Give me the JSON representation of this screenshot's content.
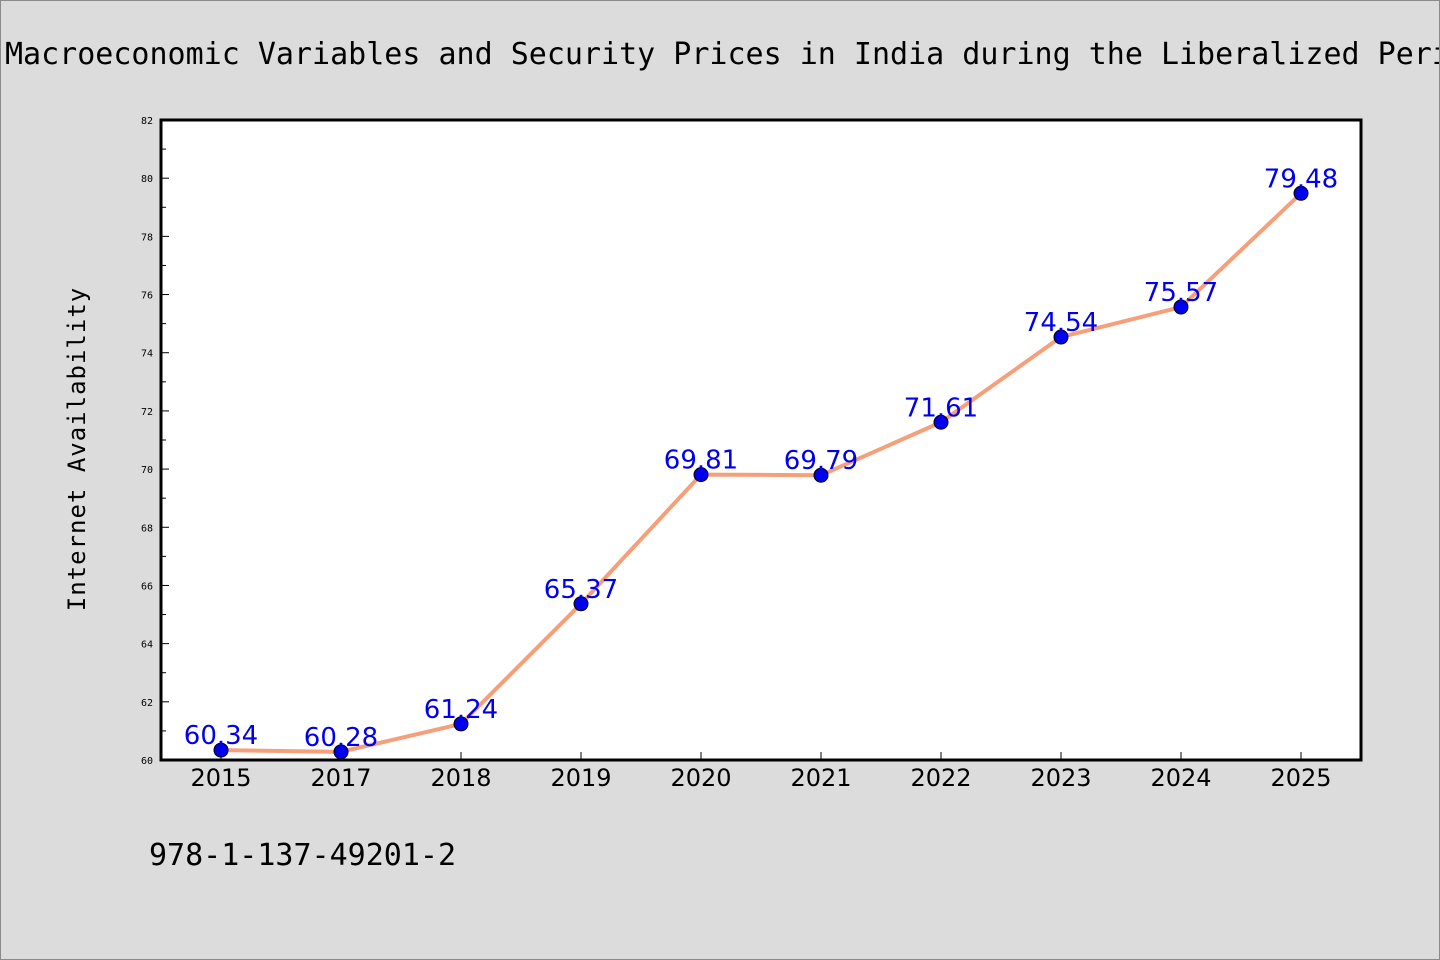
{
  "chart_data": {
    "type": "line",
    "title": "Macroeconomic Variables and Security Prices in India during the Liberalized Period",
    "xlabel": "",
    "ylabel": "Internet Availability",
    "categories": [
      "2015",
      "2017",
      "2018",
      "2019",
      "2020",
      "2021",
      "2022",
      "2023",
      "2024",
      "2025"
    ],
    "series": [
      {
        "values": [
          60.34,
          60.28,
          61.24,
          65.37,
          69.81,
          69.79,
          71.61,
          74.54,
          75.57,
          79.48
        ],
        "line_color": "#f5a07a",
        "marker_color": "#0000ee"
      }
    ],
    "data_labels": [
      "60.34",
      "60.28",
      "61.24",
      "65.37",
      "69.81",
      "69.79",
      "71.61",
      "74.54",
      "75.57",
      "79.48"
    ],
    "ylim": [
      60,
      82
    ],
    "yticks": [
      "60",
      "62",
      "64",
      "66",
      "68",
      "70",
      "72",
      "74",
      "76",
      "78",
      "80",
      "82"
    ],
    "grid": false,
    "legend": "none"
  },
  "footer": {
    "isbn": "978-1-137-49201-2"
  }
}
